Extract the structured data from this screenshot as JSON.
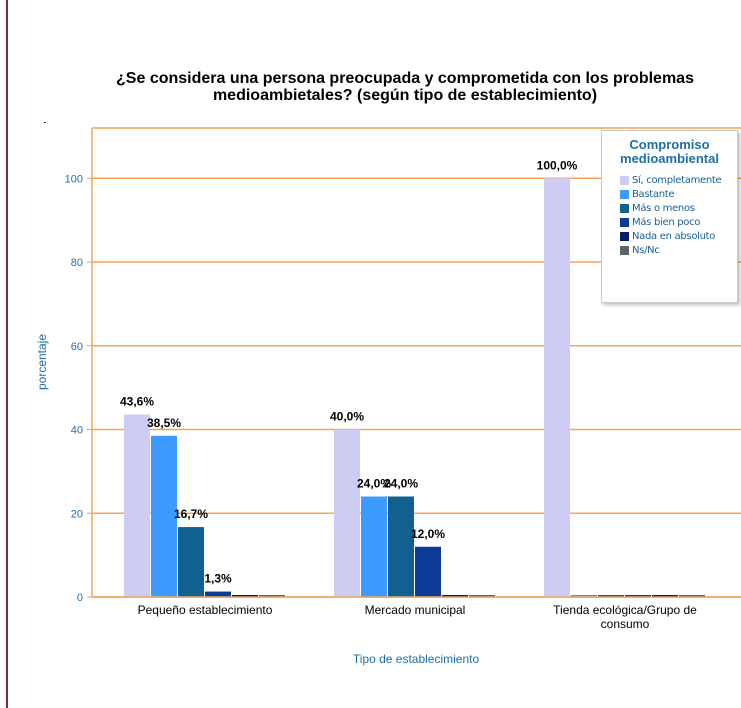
{
  "chart_data": {
    "type": "bar",
    "title": "¿Se considera una persona preocupada y comprometida con los problemas medioambietales? (según tipo de establecimiento)",
    "title_lines": [
      "¿Se considera una persona preocupada y comprometida con los problemas",
      "medioambietales? (según tipo de establecimiento)"
    ],
    "xlabel": "Tipo de establecimiento",
    "ylabel": "porcentaje",
    "ylim": [
      0,
      112
    ],
    "yticks": [
      0,
      20,
      40,
      60,
      80,
      100
    ],
    "grid": true,
    "categories": [
      [
        "Pequeño establecimiento"
      ],
      [
        "Mercado municipal"
      ],
      [
        "Tienda ecológica/Grupo de",
        "consumo"
      ]
    ],
    "legend": {
      "title_lines": [
        "Compromiso",
        "medioambiental"
      ],
      "position": "top-right"
    },
    "series": [
      {
        "name": "Sí, completamente",
        "color": "#ccccf5",
        "values": [
          43.6,
          40.0,
          100.0
        ],
        "labels": [
          "43,6%",
          "40,0%",
          "100,0%"
        ]
      },
      {
        "name": "Bastante",
        "color": "#3d9bff",
        "values": [
          38.5,
          24.0,
          0
        ],
        "labels": [
          "38,5%",
          "24,0%",
          ""
        ]
      },
      {
        "name": "Más o menos",
        "color": "#11608f",
        "values": [
          16.7,
          24.0,
          0
        ],
        "labels": [
          "16,7%",
          "24,0%",
          ""
        ]
      },
      {
        "name": "Más bien poco",
        "color": "#0d3b98",
        "values": [
          1.3,
          12.0,
          0
        ],
        "labels": [
          "1,3%",
          "12,0%",
          ""
        ]
      },
      {
        "name": "Nada en absoluto",
        "color": "#0d1a6b",
        "values": [
          0,
          0,
          0
        ],
        "labels": [
          "",
          "",
          ""
        ]
      },
      {
        "name": "Ns/Nc",
        "color": "#5c6466",
        "values": [
          0,
          0,
          0
        ],
        "labels": [
          "",
          "",
          ""
        ]
      }
    ]
  },
  "colors": {
    "grid": "#f5a55a",
    "axis_text": "#1e6fa6",
    "plot_border": "#f5a55a"
  }
}
